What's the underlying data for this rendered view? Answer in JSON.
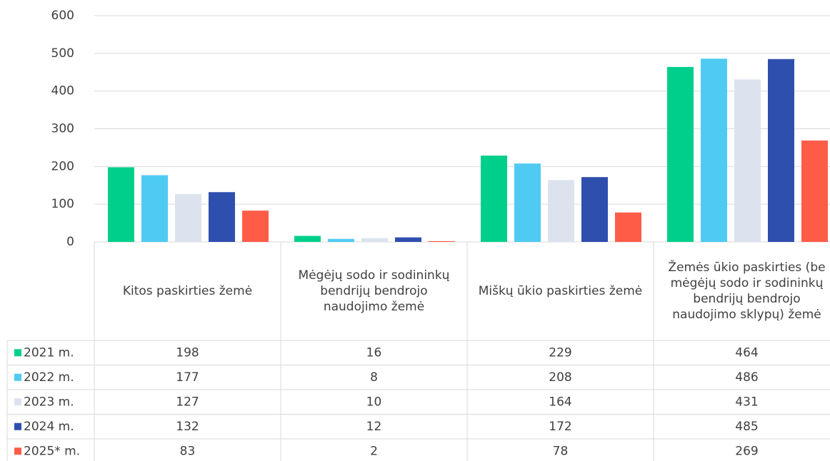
{
  "chart_data": {
    "type": "bar",
    "categories": [
      "Kitos paskirties žemė",
      "Mėgėjų sodo ir sodininkų bendrijų bendrojo naudojimo žemė",
      "Miškų ūkio paskirties žemė",
      "Žemės ūkio paskirties (be mėgėjų sodo ir sodininkų bendrijų bendrojo naudojimo sklypų) žemė"
    ],
    "series": [
      {
        "name": "2021 m.",
        "color": "#00cf8b",
        "values": [
          198,
          16,
          229,
          464
        ]
      },
      {
        "name": "2022 m.",
        "color": "#4fcbf3",
        "values": [
          177,
          8,
          208,
          486
        ]
      },
      {
        "name": "2023 m.",
        "color": "#dce3ef",
        "values": [
          127,
          10,
          164,
          431
        ]
      },
      {
        "name": "2024 m.",
        "color": "#2f4fae",
        "values": [
          132,
          12,
          172,
          485
        ]
      },
      {
        "name": "2025* m.",
        "color": "#ff5c47",
        "values": [
          83,
          2,
          78,
          269
        ]
      }
    ],
    "ylim": [
      0,
      600
    ],
    "yticks": [
      0,
      100,
      200,
      300,
      400,
      500,
      600
    ],
    "grid": true
  }
}
